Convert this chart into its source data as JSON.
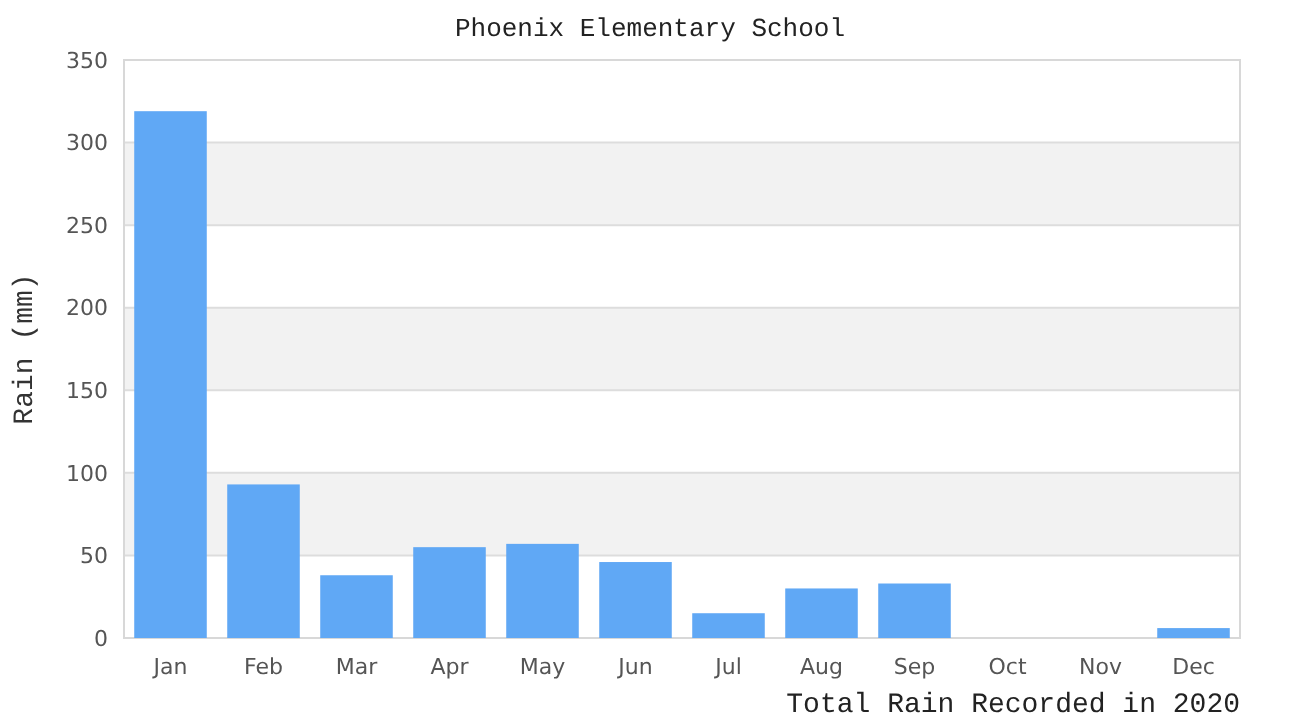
{
  "chart_data": {
    "type": "bar",
    "title": "Phoenix Elementary School",
    "xlabel": "Total Rain Recorded in 2020",
    "ylabel": "Rain (mm)",
    "categories": [
      "Jan",
      "Feb",
      "Mar",
      "Apr",
      "May",
      "Jun",
      "Jul",
      "Aug",
      "Sep",
      "Oct",
      "Nov",
      "Dec"
    ],
    "values": [
      319,
      93,
      38,
      55,
      57,
      46,
      15,
      30,
      33,
      0,
      0,
      6
    ],
    "color": "#60a8f5",
    "ylim": [
      0,
      350
    ],
    "yticks": [
      0,
      50,
      100,
      150,
      200,
      250,
      300,
      350
    ],
    "grid": "y"
  }
}
